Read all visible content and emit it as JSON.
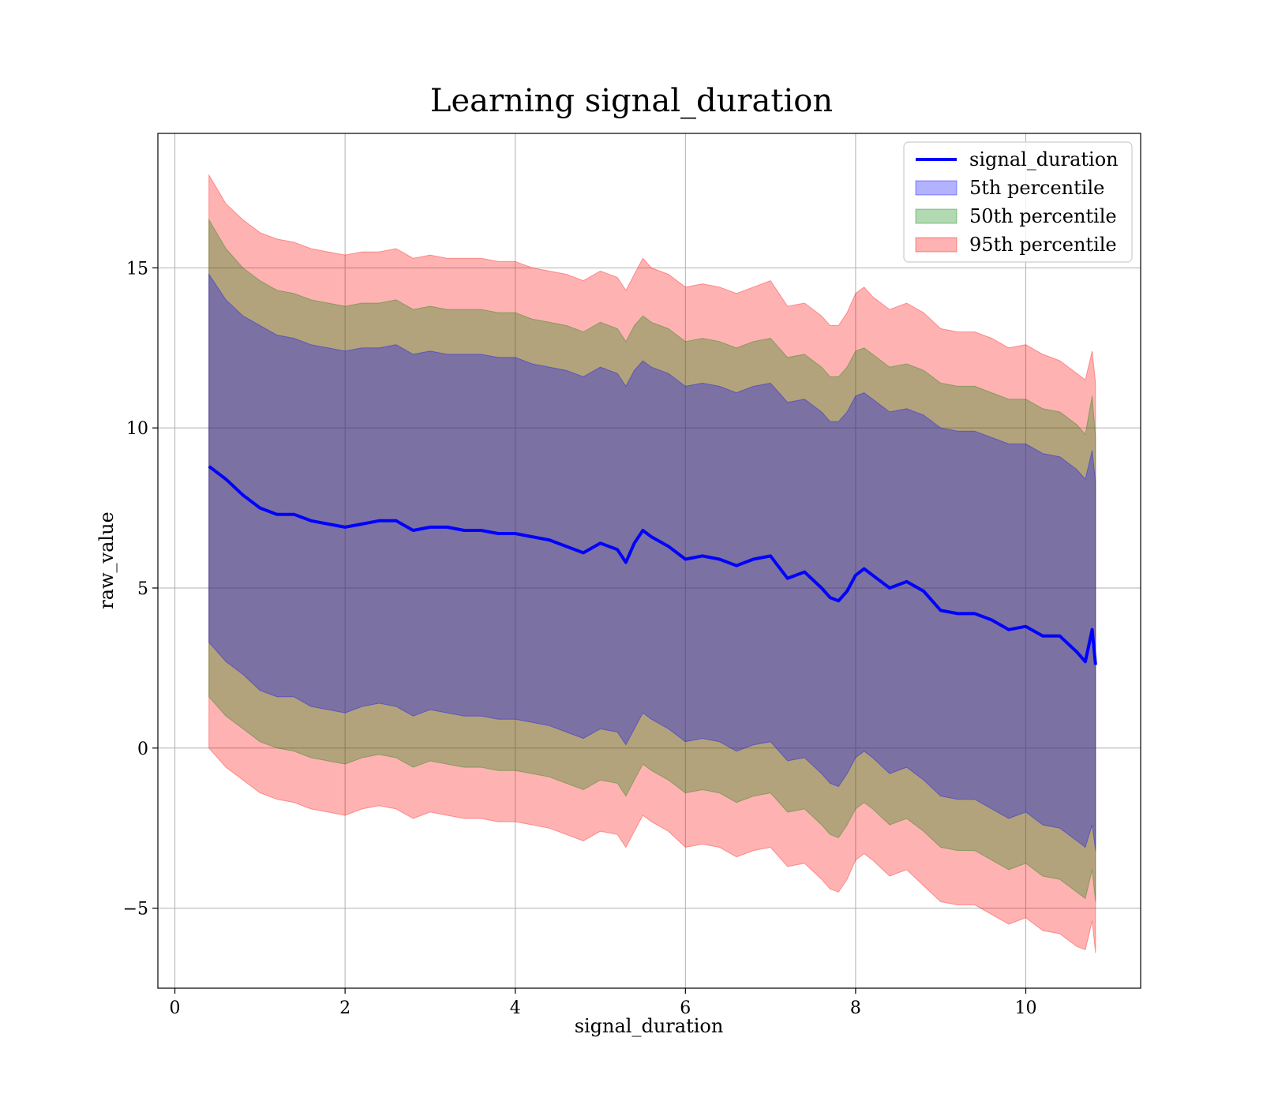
{
  "chart_data": {
    "type": "area",
    "title": "Learning signal_duration",
    "xlabel": "signal_duration",
    "ylabel": "raw_value",
    "xlim": [
      -0.2,
      11.35
    ],
    "ylim": [
      -7.5,
      19.2
    ],
    "xticks": [
      0,
      2,
      4,
      6,
      8,
      10
    ],
    "yticks": [
      -5,
      0,
      5,
      10,
      15
    ],
    "xtick_labels": [
      "0",
      "2",
      "4",
      "6",
      "8",
      "10"
    ],
    "ytick_labels": [
      "−5",
      "0",
      "5",
      "10",
      "15"
    ],
    "grid": true,
    "legend_position": "upper right",
    "x": [
      0.4,
      0.6,
      0.8,
      1.0,
      1.2,
      1.4,
      1.6,
      1.8,
      2.0,
      2.2,
      2.4,
      2.6,
      2.8,
      3.0,
      3.2,
      3.4,
      3.6,
      3.8,
      4.0,
      4.2,
      4.4,
      4.6,
      4.8,
      5.0,
      5.2,
      5.3,
      5.4,
      5.5,
      5.6,
      5.8,
      6.0,
      6.2,
      6.4,
      6.6,
      6.8,
      7.0,
      7.2,
      7.4,
      7.6,
      7.7,
      7.8,
      7.9,
      8.0,
      8.1,
      8.2,
      8.4,
      8.6,
      8.8,
      9.0,
      9.2,
      9.4,
      9.6,
      9.8,
      10.0,
      10.2,
      10.4,
      10.6,
      10.7,
      10.78,
      10.82
    ],
    "series": [
      {
        "name": "signal_duration",
        "kind": "line",
        "color": "#0000ff",
        "values": [
          8.8,
          8.4,
          7.9,
          7.5,
          7.3,
          7.3,
          7.1,
          7.0,
          6.9,
          7.0,
          7.1,
          7.1,
          6.8,
          6.9,
          6.9,
          6.8,
          6.8,
          6.7,
          6.7,
          6.6,
          6.5,
          6.3,
          6.1,
          6.4,
          6.2,
          5.8,
          6.4,
          6.8,
          6.6,
          6.3,
          5.9,
          6.0,
          5.9,
          5.7,
          5.9,
          6.0,
          5.3,
          5.5,
          5.0,
          4.7,
          4.6,
          4.9,
          5.4,
          5.6,
          5.4,
          5.0,
          5.2,
          4.9,
          4.3,
          4.2,
          4.2,
          4.0,
          3.7,
          3.8,
          3.5,
          3.5,
          3.0,
          2.7,
          3.7,
          2.6
        ]
      },
      {
        "name": "5th percentile",
        "kind": "band",
        "color": "#0000ff",
        "upper": [
          14.8,
          14.0,
          13.5,
          13.2,
          12.9,
          12.8,
          12.6,
          12.5,
          12.4,
          12.5,
          12.5,
          12.6,
          12.3,
          12.4,
          12.3,
          12.3,
          12.3,
          12.2,
          12.2,
          12.0,
          11.9,
          11.8,
          11.6,
          11.9,
          11.7,
          11.3,
          11.8,
          12.1,
          11.9,
          11.7,
          11.3,
          11.4,
          11.3,
          11.1,
          11.3,
          11.4,
          10.8,
          10.9,
          10.5,
          10.2,
          10.2,
          10.5,
          11.0,
          11.1,
          10.9,
          10.5,
          10.6,
          10.4,
          10.0,
          9.9,
          9.9,
          9.7,
          9.5,
          9.5,
          9.2,
          9.1,
          8.7,
          8.4,
          9.3,
          8.3
        ],
        "lower": [
          3.3,
          2.7,
          2.3,
          1.8,
          1.6,
          1.6,
          1.3,
          1.2,
          1.1,
          1.3,
          1.4,
          1.3,
          1.0,
          1.2,
          1.1,
          1.0,
          1.0,
          0.9,
          0.9,
          0.8,
          0.7,
          0.5,
          0.3,
          0.6,
          0.5,
          0.1,
          0.6,
          1.1,
          0.9,
          0.6,
          0.2,
          0.3,
          0.2,
          -0.1,
          0.1,
          0.2,
          -0.4,
          -0.3,
          -0.8,
          -1.1,
          -1.2,
          -0.8,
          -0.3,
          -0.1,
          -0.3,
          -0.8,
          -0.6,
          -1.0,
          -1.5,
          -1.6,
          -1.6,
          -1.9,
          -2.2,
          -2.0,
          -2.4,
          -2.5,
          -2.9,
          -3.1,
          -2.4,
          -3.2
        ]
      },
      {
        "name": "50th percentile",
        "kind": "band",
        "color": "#008000",
        "upper": [
          16.5,
          15.6,
          15.0,
          14.6,
          14.3,
          14.2,
          14.0,
          13.9,
          13.8,
          13.9,
          13.9,
          14.0,
          13.7,
          13.8,
          13.7,
          13.7,
          13.7,
          13.6,
          13.6,
          13.4,
          13.3,
          13.2,
          13.0,
          13.3,
          13.1,
          12.7,
          13.2,
          13.5,
          13.3,
          13.1,
          12.7,
          12.8,
          12.7,
          12.5,
          12.7,
          12.8,
          12.2,
          12.3,
          11.9,
          11.6,
          11.6,
          11.9,
          12.4,
          12.5,
          12.3,
          11.9,
          12.0,
          11.8,
          11.4,
          11.3,
          11.3,
          11.1,
          10.9,
          10.9,
          10.6,
          10.5,
          10.1,
          9.8,
          11.0,
          9.7
        ],
        "lower": [
          1.6,
          1.0,
          0.6,
          0.2,
          0.0,
          -0.1,
          -0.3,
          -0.4,
          -0.5,
          -0.3,
          -0.2,
          -0.3,
          -0.6,
          -0.4,
          -0.5,
          -0.6,
          -0.6,
          -0.7,
          -0.7,
          -0.8,
          -0.9,
          -1.1,
          -1.3,
          -1.0,
          -1.1,
          -1.5,
          -1.0,
          -0.5,
          -0.7,
          -1.0,
          -1.4,
          -1.3,
          -1.4,
          -1.7,
          -1.5,
          -1.4,
          -2.0,
          -1.9,
          -2.4,
          -2.7,
          -2.8,
          -2.4,
          -1.9,
          -1.7,
          -1.9,
          -2.4,
          -2.2,
          -2.6,
          -3.1,
          -3.2,
          -3.2,
          -3.5,
          -3.8,
          -3.6,
          -4.0,
          -4.1,
          -4.5,
          -4.7,
          -3.8,
          -4.8
        ]
      },
      {
        "name": "95th percentile",
        "kind": "band",
        "color": "#ff0000",
        "upper": [
          17.9,
          17.0,
          16.5,
          16.1,
          15.9,
          15.8,
          15.6,
          15.5,
          15.4,
          15.5,
          15.5,
          15.6,
          15.3,
          15.4,
          15.3,
          15.3,
          15.3,
          15.2,
          15.2,
          15.0,
          14.9,
          14.8,
          14.6,
          14.9,
          14.7,
          14.3,
          14.8,
          15.3,
          15.0,
          14.8,
          14.4,
          14.5,
          14.4,
          14.2,
          14.4,
          14.6,
          13.8,
          13.9,
          13.5,
          13.2,
          13.2,
          13.6,
          14.2,
          14.4,
          14.1,
          13.7,
          13.9,
          13.6,
          13.1,
          13.0,
          13.0,
          12.8,
          12.5,
          12.6,
          12.3,
          12.1,
          11.7,
          11.5,
          12.4,
          11.4
        ],
        "lower": [
          0.0,
          -0.6,
          -1.0,
          -1.4,
          -1.6,
          -1.7,
          -1.9,
          -2.0,
          -2.1,
          -1.9,
          -1.8,
          -1.9,
          -2.2,
          -2.0,
          -2.1,
          -2.2,
          -2.2,
          -2.3,
          -2.3,
          -2.4,
          -2.5,
          -2.7,
          -2.9,
          -2.6,
          -2.7,
          -3.1,
          -2.6,
          -2.1,
          -2.3,
          -2.6,
          -3.1,
          -3.0,
          -3.1,
          -3.4,
          -3.2,
          -3.1,
          -3.7,
          -3.6,
          -4.1,
          -4.4,
          -4.5,
          -4.1,
          -3.5,
          -3.3,
          -3.5,
          -4.0,
          -3.8,
          -4.3,
          -4.8,
          -4.9,
          -4.9,
          -5.2,
          -5.5,
          -5.3,
          -5.7,
          -5.8,
          -6.2,
          -6.3,
          -5.4,
          -6.4
        ]
      }
    ]
  }
}
